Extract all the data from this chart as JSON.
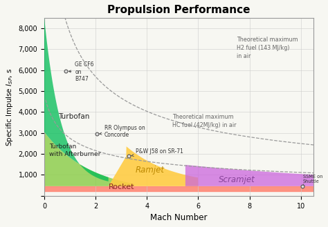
{
  "title": "Propulsion Performance",
  "xlabel": "Mach Number",
  "ylabel": "Specific Impulse $I_{SP}$, s",
  "xlim": [
    0,
    10.5
  ],
  "ylim": [
    0,
    8500
  ],
  "xticks": [
    0,
    2,
    4,
    6,
    8,
    10
  ],
  "yticks": [
    0,
    1000,
    2000,
    3000,
    4000,
    5000,
    6000,
    7000,
    8000
  ],
  "bg_color": "#f7f7f2",
  "turbofan_color": "#00bb55",
  "afterburner_color": "#88cc44",
  "ramjet_color": "#ffcc44",
  "scramjet_color": "#cc66dd",
  "rocket_color": "#ff8877",
  "grid_color": "#cccccc",
  "annotation_color": "#444444",
  "curve_color": "#999999"
}
